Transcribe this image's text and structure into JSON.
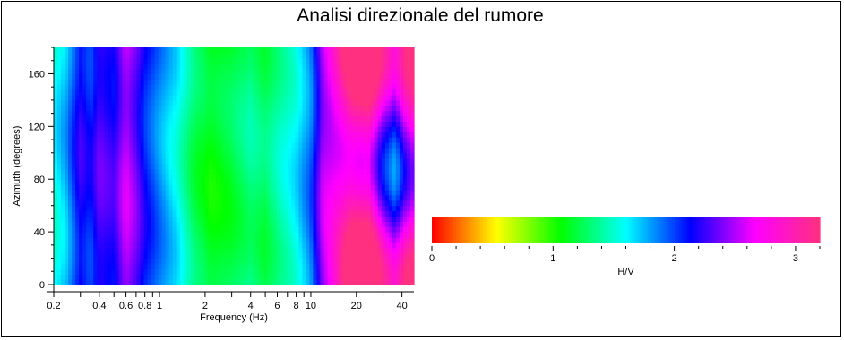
{
  "chart_data": [
    {
      "type": "heatmap",
      "title": "Analisi direzionale del rumore",
      "xlabel": "Frequency (Hz)",
      "ylabel": "Azimuth (degrees)",
      "x_scale": "log",
      "xlim": [
        0.2,
        48
      ],
      "ylim": [
        0,
        180
      ],
      "x_tick_labels": [
        "0.2",
        "0.4",
        "0.6",
        "0.8",
        "1",
        "2",
        "4",
        "6",
        "8",
        "10",
        "20",
        "40"
      ],
      "y_tick_labels": [
        "0",
        "40",
        "80",
        "120",
        "160"
      ],
      "value_label": "H/V",
      "frequency_profile": [
        {
          "f": 0.2,
          "hv": 1.55
        },
        {
          "f": 0.24,
          "hv": 1.75
        },
        {
          "f": 0.3,
          "hv": 2.2
        },
        {
          "f": 0.35,
          "hv": 2.05
        },
        {
          "f": 0.4,
          "hv": 2.3
        },
        {
          "f": 0.5,
          "hv": 2.2
        },
        {
          "f": 0.6,
          "hv": 2.55
        },
        {
          "f": 0.7,
          "hv": 2.35
        },
        {
          "f": 0.8,
          "hv": 2.1
        },
        {
          "f": 1.0,
          "hv": 1.85
        },
        {
          "f": 1.3,
          "hv": 1.6
        },
        {
          "f": 1.7,
          "hv": 1.25
        },
        {
          "f": 2.2,
          "hv": 1.1
        },
        {
          "f": 3.0,
          "hv": 1.2
        },
        {
          "f": 4.0,
          "hv": 1.35
        },
        {
          "f": 5.0,
          "hv": 1.25
        },
        {
          "f": 6.0,
          "hv": 1.4
        },
        {
          "f": 8.0,
          "hv": 1.6
        },
        {
          "f": 10.0,
          "hv": 1.9
        },
        {
          "f": 12.0,
          "hv": 2.5
        },
        {
          "f": 15.0,
          "hv": 2.8
        },
        {
          "f": 19.0,
          "hv": 3.15
        },
        {
          "f": 24.0,
          "hv": 3.2
        },
        {
          "f": 30.0,
          "hv": 2.6
        },
        {
          "f": 36.0,
          "hv": 2.3
        },
        {
          "f": 42.0,
          "hv": 2.7
        },
        {
          "f": 48.0,
          "hv": 2.9
        }
      ]
    },
    {
      "type": "colorbar",
      "label": "H/V",
      "range": [
        0,
        3.2
      ],
      "tick_labels": [
        "0",
        "1",
        "2",
        "3"
      ],
      "tick_values": [
        0,
        1,
        2,
        3
      ],
      "colormap": [
        "#ff0000",
        "#ffff00",
        "#00ff00",
        "#00ffff",
        "#0000ff",
        "#ff00ff",
        "#ff3080"
      ]
    }
  ]
}
